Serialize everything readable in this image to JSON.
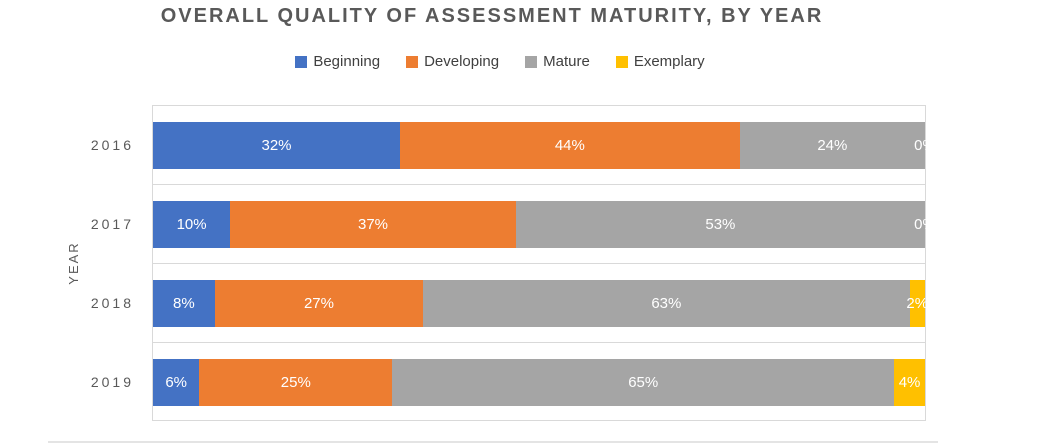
{
  "chart_data": {
    "type": "bar",
    "orientation": "horizontal-stacked",
    "title": "OVERALL QUALITY OF ASSESSMENT MATURITY, BY YEAR",
    "xlabel": "",
    "ylabel": "YEAR",
    "xlim": [
      0,
      100
    ],
    "unit": "percent",
    "legend_position": "top",
    "grid": "category-separator-lines",
    "categories": [
      "2016",
      "2017",
      "2018",
      "2019"
    ],
    "series": [
      {
        "name": "Beginning",
        "color": "#4472C4",
        "values": [
          32,
          10,
          8,
          6
        ]
      },
      {
        "name": "Developing",
        "color": "#ED7D31",
        "values": [
          44,
          37,
          27,
          25
        ]
      },
      {
        "name": "Mature",
        "color": "#A5A5A5",
        "values": [
          24,
          53,
          63,
          65
        ]
      },
      {
        "name": "Exemplary",
        "color": "#FFC000",
        "values": [
          0,
          0,
          2,
          4
        ]
      }
    ],
    "data_labels": [
      [
        "32%",
        "44%",
        "24%",
        "0%"
      ],
      [
        "10%",
        "37%",
        "53%",
        "0%"
      ],
      [
        "8%",
        "27%",
        "63%",
        "2%"
      ],
      [
        "6%",
        "25%",
        "65%",
        "4%"
      ]
    ]
  },
  "colors": {
    "title_text": "#595959",
    "legend_text": "#404040",
    "axis_text": "#595959",
    "gridline": "#D9D9D9",
    "data_label_text": "#FFFFFF"
  }
}
